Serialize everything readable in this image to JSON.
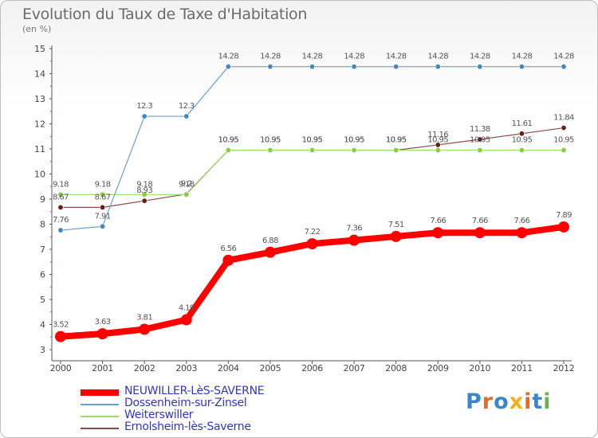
{
  "title": "Evolution du Taux de Taxe d'Habitation",
  "subtitle": "(en %)",
  "logo": {
    "text": "Proxiti",
    "letters": [
      {
        "ch": "P",
        "color": "#3a86c8"
      },
      {
        "ch": "r",
        "color": "#e36b2c"
      },
      {
        "ch": "o",
        "color": "#3a86c8"
      },
      {
        "ch": "x",
        "color": "#f2b01e"
      },
      {
        "ch": "i",
        "color": "#e36b2c"
      },
      {
        "ch": "t",
        "color": "#3a86c8"
      },
      {
        "ch": "i",
        "color": "#6ab04c"
      }
    ]
  },
  "chart_data": {
    "type": "line",
    "x": [
      "2000",
      "2001",
      "2002",
      "2003",
      "2004",
      "2005",
      "2006",
      "2007",
      "2008",
      "2009",
      "2010",
      "2011",
      "2012"
    ],
    "ylim": [
      3,
      15
    ],
    "yticks": [
      "3",
      "4",
      "5",
      "6",
      "7",
      "8",
      "9",
      "10",
      "11",
      "12",
      "13",
      "14",
      "15"
    ],
    "grid": false,
    "legend_position": "bottom-left",
    "series": [
      {
        "name": "NEUWILLER-LèS-SAVERNE",
        "color": "#ff0000",
        "width": 8,
        "marker": 7,
        "values": [
          3.52,
          3.63,
          3.81,
          4.19,
          6.56,
          6.88,
          7.22,
          7.36,
          7.51,
          7.66,
          7.66,
          7.66,
          7.89
        ],
        "labels": [
          "3.52",
          "3.63",
          "3.81",
          "4.19",
          "6.56",
          "6.88",
          "7.22",
          "7.36",
          "7.51",
          "7.66",
          "7.66",
          "7.66",
          "7.89"
        ]
      },
      {
        "name": "Dossenheim-sur-Zinsel",
        "color": "#6a9fd0",
        "width": 1.2,
        "marker": 3.2,
        "markerFill": "#3f87c9",
        "values": [
          7.76,
          7.91,
          12.3,
          12.3,
          14.28,
          14.28,
          14.28,
          14.28,
          14.28,
          14.28,
          14.28,
          14.28,
          14.28
        ],
        "labels": [
          "7.76",
          "7.91",
          "12.3",
          "12.3",
          "14.28",
          "14.28",
          "14.28",
          "14.28",
          "14.28",
          "14.28",
          "14.28",
          "14.28",
          "14.28"
        ]
      },
      {
        "name": "Weiterswiller",
        "color": "#99dd66",
        "width": 1.2,
        "marker": 3.2,
        "markerFill": "#88cc44",
        "values": [
          9.18,
          9.18,
          9.18,
          9.18,
          10.95,
          10.95,
          10.95,
          10.95,
          10.95,
          10.95,
          10.95,
          10.95,
          10.95
        ],
        "labels": [
          "9.18",
          "9.18",
          "9.18",
          "9.18",
          "10.95",
          "10.95",
          "10.95",
          "10.95",
          "10.95",
          "10.95",
          "10.95",
          "10.95",
          "10.95"
        ]
      },
      {
        "name": "Ernolsheim-lès-Saverne",
        "color": "#8b4a4a",
        "width": 1.2,
        "marker": 3.2,
        "markerFill": "#6a1f1f",
        "values": [
          8.67,
          8.67,
          8.93,
          9.2,
          10.95,
          10.95,
          10.95,
          10.95,
          10.95,
          11.16,
          11.38,
          11.61,
          11.84
        ],
        "labels": [
          "8.67",
          "8.67",
          "8.93",
          "9.2",
          "10.95",
          "10.95",
          "10.95",
          "10.95",
          "10.95",
          "11.16",
          "11.38",
          "11.61",
          "11.84"
        ]
      }
    ]
  }
}
